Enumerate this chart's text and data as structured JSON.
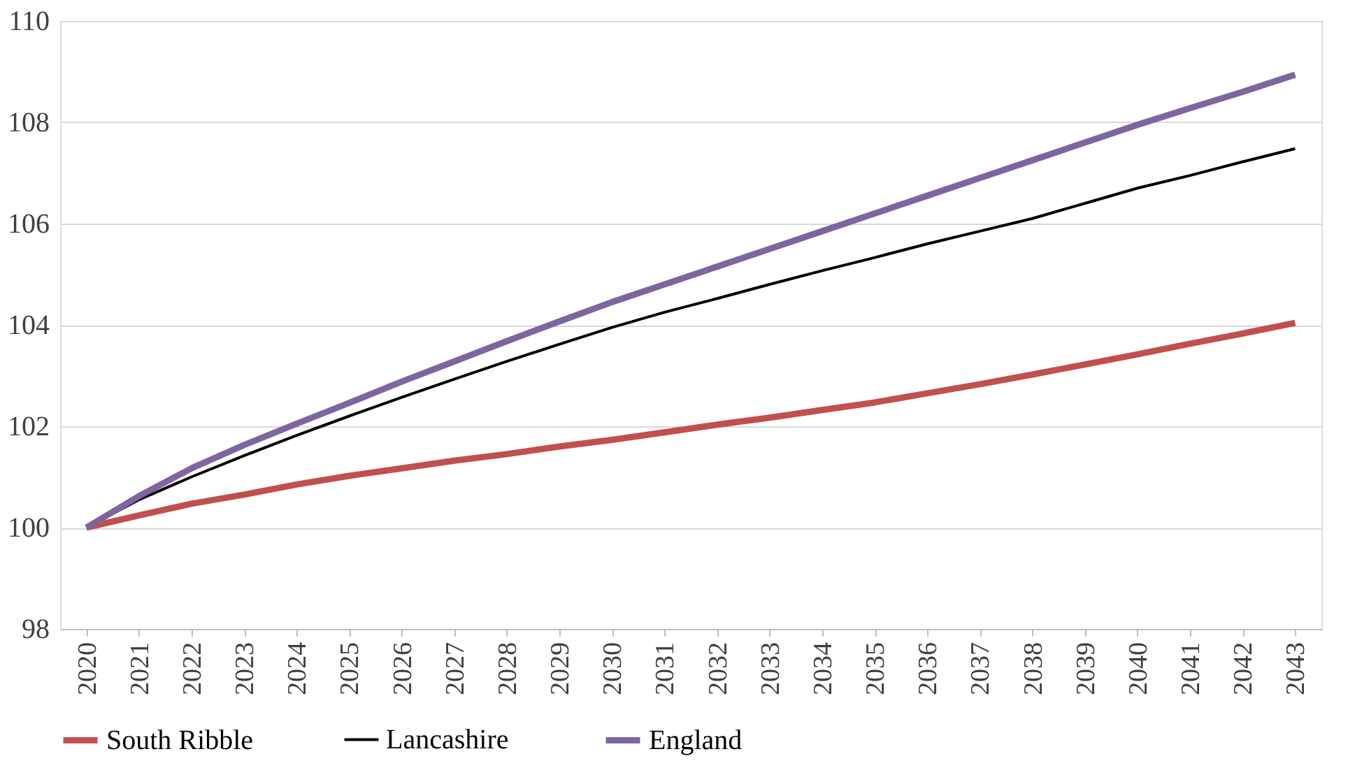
{
  "chart_data": {
    "type": "line",
    "categories": [
      "2020",
      "2021",
      "2022",
      "2023",
      "2024",
      "2025",
      "2026",
      "2027",
      "2028",
      "2029",
      "2030",
      "2031",
      "2032",
      "2033",
      "2034",
      "2035",
      "2036",
      "2037",
      "2038",
      "2039",
      "2040",
      "2041",
      "2042",
      "2043"
    ],
    "series": [
      {
        "name": "South Ribble",
        "color": "#c0504d",
        "values": [
          100,
          100.24,
          100.47,
          100.65,
          100.85,
          101.02,
          101.17,
          101.32,
          101.45,
          101.6,
          101.73,
          101.88,
          102.03,
          102.17,
          102.32,
          102.47,
          102.65,
          102.83,
          103.02,
          103.22,
          103.42,
          103.63,
          103.83,
          104.04
        ]
      },
      {
        "name": "Lancashire",
        "color": "#000000",
        "values": [
          100,
          100.55,
          101.0,
          101.42,
          101.82,
          102.2,
          102.57,
          102.93,
          103.28,
          103.62,
          103.95,
          104.25,
          104.52,
          104.8,
          105.07,
          105.33,
          105.6,
          105.85,
          106.1,
          106.4,
          106.7,
          106.95,
          107.22,
          107.48
        ]
      },
      {
        "name": "England",
        "color": "#8064a2",
        "values": [
          100,
          100.62,
          101.17,
          101.63,
          102.05,
          102.46,
          102.88,
          103.28,
          103.68,
          104.07,
          104.45,
          104.8,
          105.15,
          105.5,
          105.85,
          106.2,
          106.55,
          106.9,
          107.25,
          107.6,
          107.95,
          108.28,
          108.6,
          108.94
        ]
      }
    ],
    "ylim": [
      98,
      110
    ],
    "yticks": [
      98,
      100,
      102,
      104,
      106,
      108,
      110
    ],
    "grid": "y",
    "legend": "bottom",
    "marker": "none",
    "line_style": "solid"
  }
}
